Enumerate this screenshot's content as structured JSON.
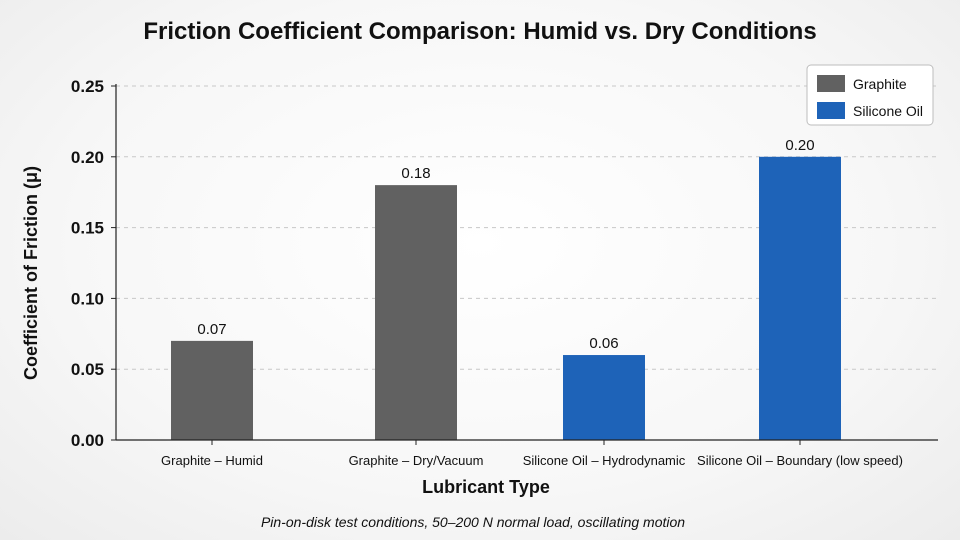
{
  "chart_data": {
    "type": "bar",
    "title": "Friction Coefficient Comparison: Humid vs. Dry Conditions",
    "subtitle": "Pin-on-disk test conditions, 50–200 N normal load, oscillating motion",
    "xlabel": "Lubricant Type",
    "ylabel": "Coefficient of Friction (μ)",
    "ylim": [
      0,
      0.25
    ],
    "yticks": [
      "0.00",
      "0.05",
      "0.10",
      "0.15",
      "0.20",
      "0.25"
    ],
    "grid": true,
    "legend_position": "top-right",
    "categories": [
      "Graphite – Humid",
      "Graphite – Dry/Vacuum",
      "Silicone Oil – Hydrodynamic",
      "Silicone Oil – Boundary (low speed)"
    ],
    "values": [
      0.07,
      0.18,
      0.06,
      0.2
    ],
    "value_labels": [
      "0.07",
      "0.18",
      "0.06",
      "0.20"
    ],
    "bar_series": [
      "Graphite",
      "Graphite",
      "Silicone Oil",
      "Silicone Oil"
    ],
    "series": [
      {
        "name": "Graphite",
        "color": "#616161"
      },
      {
        "name": "Silicone Oil",
        "color": "#1e63b8"
      }
    ]
  }
}
